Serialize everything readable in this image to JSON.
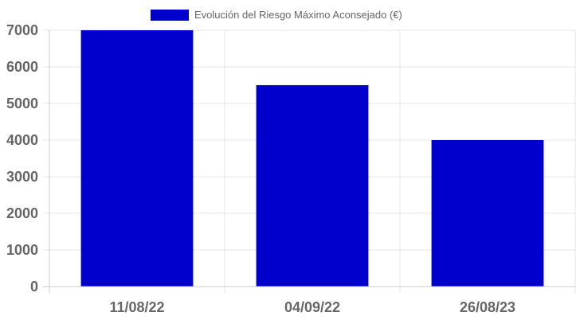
{
  "chart_data": {
    "type": "bar",
    "categories": [
      "11/08/22",
      "04/09/22",
      "26/08/23"
    ],
    "series": [
      {
        "name": "Evolución del Riesgo Máximo Aconsejado (€)",
        "values": [
          7000,
          5500,
          4000
        ],
        "color": "#0000CC"
      }
    ],
    "ylim": [
      0,
      7000
    ],
    "yticks": [
      0,
      1000,
      2000,
      3000,
      4000,
      5000,
      6000,
      7000
    ],
    "grid": true,
    "legend_position": "top-center",
    "colors": {
      "grid": "#e5e5e5",
      "axis": "#cccccc",
      "tick_text": "#666666"
    }
  }
}
